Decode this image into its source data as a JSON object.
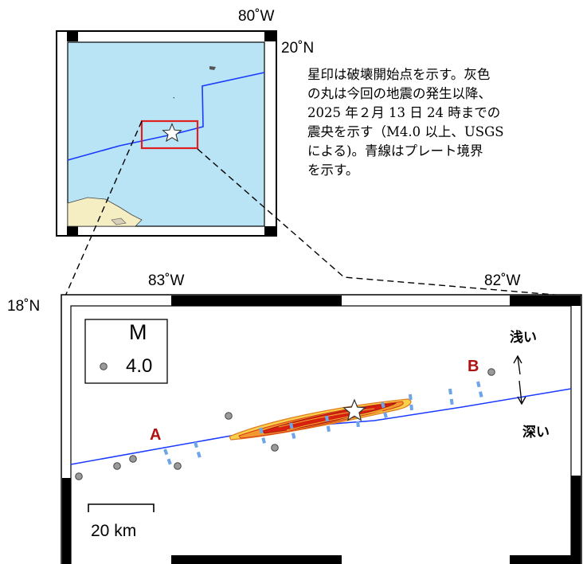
{
  "inset_map": {
    "lon_label": "80˚W",
    "lat_label": "20˚N",
    "colors": {
      "sea": "#b8e4f5",
      "land": "#f5eec2",
      "frame_red": "#e02020"
    }
  },
  "description_lines": [
    "星印は破壊開始点を示す。灰色",
    "の丸は今回の地震の発生以降、",
    "2025 年２月 13 日 24 時までの",
    "震央を示す（M4.0 以上、USGS",
    "による)。青線はプレート境界",
    "を示す。"
  ],
  "main_map": {
    "lon_labels": [
      "83˚W",
      "82˚W"
    ],
    "lat_label": "18˚N",
    "legend": {
      "title": "M",
      "value": "4.0"
    },
    "point_a": "A",
    "point_b": "B",
    "shallow_label": "浅い",
    "deep_label": "深い",
    "scale_label": "20 km",
    "colors": {
      "plate_boundary": "#1a3aff",
      "epicenter": "#9a9a9a",
      "section_label": "#b01010",
      "dash": "#6ea4e8"
    }
  }
}
